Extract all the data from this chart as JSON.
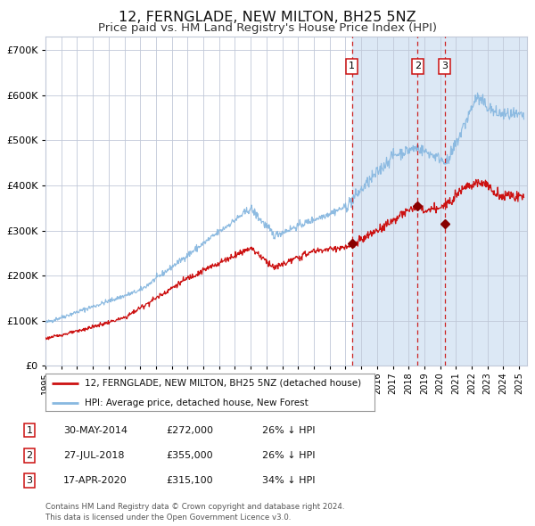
{
  "title": "12, FERNGLADE, NEW MILTON, BH25 5NZ",
  "subtitle": "Price paid vs. HM Land Registry's House Price Index (HPI)",
  "title_fontsize": 11.5,
  "subtitle_fontsize": 9.5,
  "background_color": "#ffffff",
  "plot_bg_color": "#ffffff",
  "highlight_bg_color": "#dce8f5",
  "grid_color": "#c0c8d8",
  "hpi_line_color": "#88b8e0",
  "price_line_color": "#cc1111",
  "marker_color": "#880000",
  "dashed_line_color": "#cc2222",
  "yticks": [
    0,
    100000,
    200000,
    300000,
    400000,
    500000,
    600000,
    700000
  ],
  "ylim": [
    0,
    730000
  ],
  "xlim_start": 1995.0,
  "xlim_end": 2025.5,
  "sale_events": [
    {
      "label": "1",
      "date_num": 2014.41,
      "price": 272000
    },
    {
      "label": "2",
      "date_num": 2018.57,
      "price": 355000
    },
    {
      "label": "3",
      "date_num": 2020.29,
      "price": 315100
    }
  ],
  "legend_entries": [
    {
      "label": "12, FERNGLADE, NEW MILTON, BH25 5NZ (detached house)",
      "color": "#cc1111"
    },
    {
      "label": "HPI: Average price, detached house, New Forest",
      "color": "#88b8e0"
    }
  ],
  "table_rows": [
    {
      "num": "1",
      "date": "30-MAY-2014",
      "price": "£272,000",
      "hpi": "26% ↓ HPI"
    },
    {
      "num": "2",
      "date": "27-JUL-2018",
      "price": "£355,000",
      "hpi": "26% ↓ HPI"
    },
    {
      "num": "3",
      "date": "17-APR-2020",
      "price": "£315,100",
      "hpi": "34% ↓ HPI"
    }
  ],
  "footer_text": "Contains HM Land Registry data © Crown copyright and database right 2024.\nThis data is licensed under the Open Government Licence v3.0.",
  "highlight_start": 2014.41
}
